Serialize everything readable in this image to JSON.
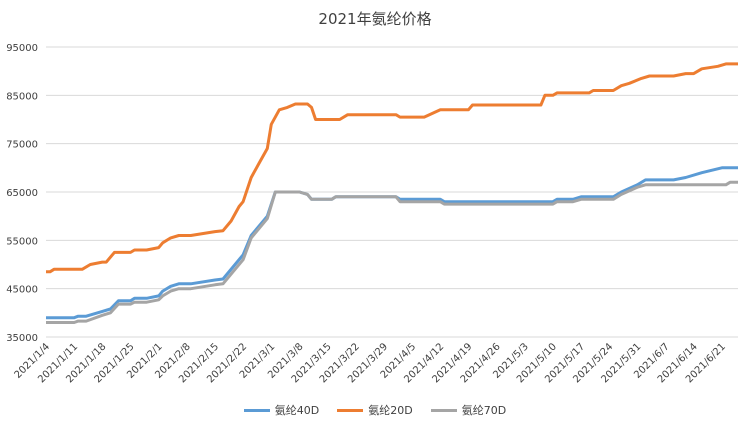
{
  "chart_data": {
    "type": "line",
    "title": "2021年氨纶价格",
    "xlabel": "",
    "ylabel": "",
    "ylim": [
      35000,
      95000
    ],
    "yticks": [
      35000,
      45000,
      55000,
      65000,
      75000,
      85000,
      95000
    ],
    "grid": "horizontal",
    "legend": "bottom",
    "x_start": "2021-01-04",
    "x_end": "2021-06-25",
    "x_ticks": [
      "2021/1/4",
      "2021/1/11",
      "2021/1/18",
      "2021/1/25",
      "2021/2/1",
      "2021/2/8",
      "2021/2/15",
      "2021/2/22",
      "2021/3/1",
      "2021/3/8",
      "2021/3/15",
      "2021/3/22",
      "2021/3/29",
      "2021/4/5",
      "2021/4/12",
      "2021/4/19",
      "2021/4/26",
      "2021/5/3",
      "2021/5/10",
      "2021/5/17",
      "2021/5/24",
      "2021/5/31",
      "2021/6/7",
      "2021/6/14",
      "2021/6/21"
    ],
    "series": [
      {
        "name": "氨纶40D",
        "color": "#5b9bd5",
        "points": [
          [
            "2021-01-04",
            39000
          ],
          [
            "2021-01-11",
            39000
          ],
          [
            "2021-01-12",
            39300
          ],
          [
            "2021-01-14",
            39300
          ],
          [
            "2021-01-18",
            40300
          ],
          [
            "2021-01-20",
            40800
          ],
          [
            "2021-01-22",
            42500
          ],
          [
            "2021-01-25",
            42500
          ],
          [
            "2021-01-26",
            43000
          ],
          [
            "2021-01-29",
            43000
          ],
          [
            "2021-02-01",
            43500
          ],
          [
            "2021-02-02",
            44500
          ],
          [
            "2021-02-04",
            45500
          ],
          [
            "2021-02-06",
            46000
          ],
          [
            "2021-02-09",
            46000
          ],
          [
            "2021-02-15",
            46800
          ],
          [
            "2021-02-17",
            47000
          ],
          [
            "2021-02-22",
            52000
          ],
          [
            "2021-02-24",
            56000
          ],
          [
            "2021-02-28",
            60000
          ],
          [
            "2021-03-02",
            65000
          ],
          [
            "2021-03-08",
            65000
          ],
          [
            "2021-03-10",
            64500
          ],
          [
            "2021-03-11",
            63500
          ],
          [
            "2021-03-16",
            63500
          ],
          [
            "2021-03-17",
            64000
          ],
          [
            "2021-04-01",
            64000
          ],
          [
            "2021-04-02",
            63500
          ],
          [
            "2021-04-12",
            63500
          ],
          [
            "2021-04-13",
            63000
          ],
          [
            "2021-05-10",
            63000
          ],
          [
            "2021-05-11",
            63500
          ],
          [
            "2021-05-15",
            63500
          ],
          [
            "2021-05-17",
            64000
          ],
          [
            "2021-05-25",
            64000
          ],
          [
            "2021-05-27",
            65000
          ],
          [
            "2021-05-31",
            66500
          ],
          [
            "2021-06-02",
            67500
          ],
          [
            "2021-06-09",
            67500
          ],
          [
            "2021-06-12",
            68000
          ],
          [
            "2021-06-16",
            69000
          ],
          [
            "2021-06-21",
            70000
          ],
          [
            "2021-06-25",
            70000
          ]
        ]
      },
      {
        "name": "氨纶20D",
        "color": "#ed7d31",
        "points": [
          [
            "2021-01-04",
            48500
          ],
          [
            "2021-01-05",
            48500
          ],
          [
            "2021-01-06",
            49000
          ],
          [
            "2021-01-13",
            49000
          ],
          [
            "2021-01-15",
            50000
          ],
          [
            "2021-01-18",
            50500
          ],
          [
            "2021-01-19",
            50500
          ],
          [
            "2021-01-21",
            52500
          ],
          [
            "2021-01-25",
            52500
          ],
          [
            "2021-01-26",
            53000
          ],
          [
            "2021-01-29",
            53000
          ],
          [
            "2021-02-01",
            53500
          ],
          [
            "2021-02-02",
            54500
          ],
          [
            "2021-02-04",
            55500
          ],
          [
            "2021-02-06",
            56000
          ],
          [
            "2021-02-09",
            56000
          ],
          [
            "2021-02-15",
            56800
          ],
          [
            "2021-02-17",
            57000
          ],
          [
            "2021-02-19",
            59000
          ],
          [
            "2021-02-21",
            62000
          ],
          [
            "2021-02-22",
            63000
          ],
          [
            "2021-02-24",
            68000
          ],
          [
            "2021-02-26",
            71000
          ],
          [
            "2021-02-28",
            74000
          ],
          [
            "2021-03-01",
            79000
          ],
          [
            "2021-03-03",
            82000
          ],
          [
            "2021-03-05",
            82500
          ],
          [
            "2021-03-07",
            83200
          ],
          [
            "2021-03-10",
            83200
          ],
          [
            "2021-03-11",
            82500
          ],
          [
            "2021-03-12",
            80000
          ],
          [
            "2021-03-18",
            80000
          ],
          [
            "2021-03-20",
            81000
          ],
          [
            "2021-04-01",
            81000
          ],
          [
            "2021-04-02",
            80500
          ],
          [
            "2021-04-08",
            80500
          ],
          [
            "2021-04-12",
            82000
          ],
          [
            "2021-04-19",
            82000
          ],
          [
            "2021-04-20",
            83000
          ],
          [
            "2021-05-07",
            83000
          ],
          [
            "2021-05-08",
            85000
          ],
          [
            "2021-05-10",
            85000
          ],
          [
            "2021-05-11",
            85500
          ],
          [
            "2021-05-19",
            85500
          ],
          [
            "2021-05-20",
            86000
          ],
          [
            "2021-05-25",
            86000
          ],
          [
            "2021-05-27",
            87000
          ],
          [
            "2021-05-29",
            87500
          ],
          [
            "2021-06-01",
            88500
          ],
          [
            "2021-06-03",
            89000
          ],
          [
            "2021-06-09",
            89000
          ],
          [
            "2021-06-12",
            89500
          ],
          [
            "2021-06-14",
            89500
          ],
          [
            "2021-06-16",
            90500
          ],
          [
            "2021-06-20",
            91000
          ],
          [
            "2021-06-22",
            91500
          ],
          [
            "2021-06-25",
            91500
          ]
        ]
      },
      {
        "name": "氨纶70D",
        "color": "#a5a5a5",
        "points": [
          [
            "2021-01-04",
            38000
          ],
          [
            "2021-01-11",
            38000
          ],
          [
            "2021-01-12",
            38300
          ],
          [
            "2021-01-14",
            38300
          ],
          [
            "2021-01-18",
            39500
          ],
          [
            "2021-01-20",
            40000
          ],
          [
            "2021-01-22",
            41800
          ],
          [
            "2021-01-25",
            41800
          ],
          [
            "2021-01-26",
            42200
          ],
          [
            "2021-01-29",
            42200
          ],
          [
            "2021-02-01",
            42700
          ],
          [
            "2021-02-02",
            43500
          ],
          [
            "2021-02-04",
            44500
          ],
          [
            "2021-02-06",
            45000
          ],
          [
            "2021-02-09",
            45000
          ],
          [
            "2021-02-15",
            45800
          ],
          [
            "2021-02-17",
            46000
          ],
          [
            "2021-02-22",
            51000
          ],
          [
            "2021-02-24",
            55500
          ],
          [
            "2021-02-28",
            59500
          ],
          [
            "2021-03-02",
            65000
          ],
          [
            "2021-03-08",
            65000
          ],
          [
            "2021-03-10",
            64500
          ],
          [
            "2021-03-11",
            63500
          ],
          [
            "2021-03-16",
            63500
          ],
          [
            "2021-03-17",
            64000
          ],
          [
            "2021-04-01",
            64000
          ],
          [
            "2021-04-02",
            63000
          ],
          [
            "2021-04-12",
            63000
          ],
          [
            "2021-04-13",
            62500
          ],
          [
            "2021-05-10",
            62500
          ],
          [
            "2021-05-11",
            63000
          ],
          [
            "2021-05-15",
            63000
          ],
          [
            "2021-05-17",
            63500
          ],
          [
            "2021-05-25",
            63500
          ],
          [
            "2021-05-27",
            64500
          ],
          [
            "2021-05-31",
            66000
          ],
          [
            "2021-06-02",
            66500
          ],
          [
            "2021-06-22",
            66500
          ],
          [
            "2021-06-23",
            67000
          ],
          [
            "2021-06-25",
            67000
          ]
        ]
      }
    ]
  }
}
